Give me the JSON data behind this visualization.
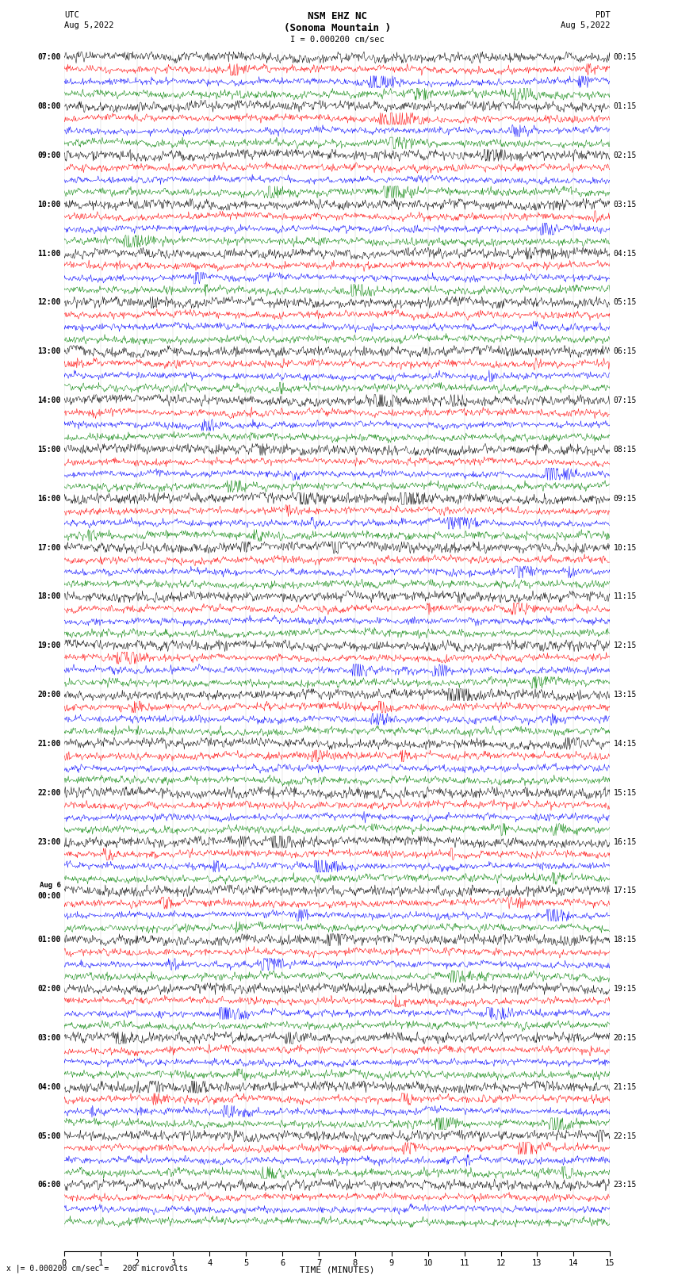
{
  "title_line1": "NSM EHZ NC",
  "title_line2": "(Sonoma Mountain )",
  "scale_label": "I = 0.000200 cm/sec",
  "left_header_line1": "UTC",
  "left_header_line2": "Aug 5,2022",
  "right_header_line1": "PDT",
  "right_header_line2": "Aug 5,2022",
  "xlabel": "TIME (MINUTES)",
  "bottom_note": "x |= 0.000200 cm/sec =   200 microvolts",
  "left_times": [
    "07:00",
    "08:00",
    "09:00",
    "10:00",
    "11:00",
    "12:00",
    "13:00",
    "14:00",
    "15:00",
    "16:00",
    "17:00",
    "18:00",
    "19:00",
    "20:00",
    "21:00",
    "22:00",
    "23:00",
    "Aug 6\n00:00",
    "01:00",
    "02:00",
    "03:00",
    "04:00",
    "05:00",
    "06:00"
  ],
  "right_times": [
    "00:15",
    "01:15",
    "02:15",
    "03:15",
    "04:15",
    "05:15",
    "06:15",
    "07:15",
    "08:15",
    "09:15",
    "10:15",
    "11:15",
    "12:15",
    "13:15",
    "14:15",
    "15:15",
    "16:15",
    "17:15",
    "18:15",
    "19:15",
    "20:15",
    "21:15",
    "22:15",
    "23:15"
  ],
  "n_rows": 24,
  "traces_per_row": 4,
  "colors": [
    "black",
    "red",
    "blue",
    "green"
  ],
  "background": "white",
  "x_ticks": [
    0,
    1,
    2,
    3,
    4,
    5,
    6,
    7,
    8,
    9,
    10,
    11,
    12,
    13,
    14,
    15
  ],
  "fig_width": 8.5,
  "fig_height": 16.13
}
